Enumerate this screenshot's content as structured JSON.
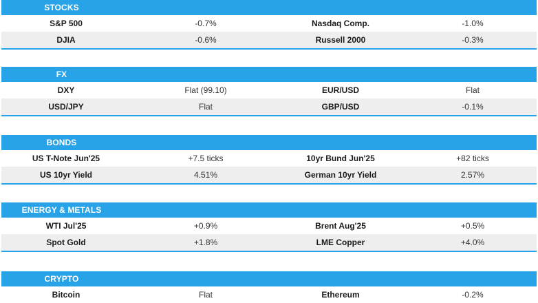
{
  "colors": {
    "header_bg": "#29a3e8",
    "alt_row_bg": "#eeeeee",
    "header_text": "#ffffff"
  },
  "sections": [
    {
      "title": "STOCKS",
      "rows": [
        {
          "name1": "S&P 500",
          "value1": "-0.7%",
          "name2": "Nasdaq Comp.",
          "value2": "-1.0%"
        },
        {
          "name1": "DJIA",
          "value1": "-0.6%",
          "name2": "Russell 2000",
          "value2": "-0.3%"
        }
      ]
    },
    {
      "title": "FX",
      "rows": [
        {
          "name1": "DXY",
          "value1": "Flat (99.10)",
          "name2": "EUR/USD",
          "value2": "Flat"
        },
        {
          "name1": "USD/JPY",
          "value1": "Flat",
          "name2": "GBP/USD",
          "value2": "-0.1%"
        }
      ]
    },
    {
      "title": "BONDS",
      "rows": [
        {
          "name1": "US T-Note Jun'25",
          "value1": "+7.5 ticks",
          "name2": "10yr Bund Jun'25",
          "value2": "+82 ticks"
        },
        {
          "name1": "US 10yr Yield",
          "value1": "4.51%",
          "name2": "German 10yr Yield",
          "value2": "2.57%"
        }
      ]
    },
    {
      "title": "ENERGY & METALS",
      "rows": [
        {
          "name1": "WTI Jul'25",
          "value1": "+0.9%",
          "name2": "Brent Aug'25",
          "value2": "+0.5%"
        },
        {
          "name1": "Spot Gold",
          "value1": "+1.8%",
          "name2": "LME Copper",
          "value2": "+4.0%"
        }
      ]
    },
    {
      "title": "CRYPTO",
      "rows": [
        {
          "name1": "Bitcoin",
          "value1": "Flat",
          "name2": "Ethereum",
          "value2": "-0.2%"
        }
      ]
    }
  ]
}
